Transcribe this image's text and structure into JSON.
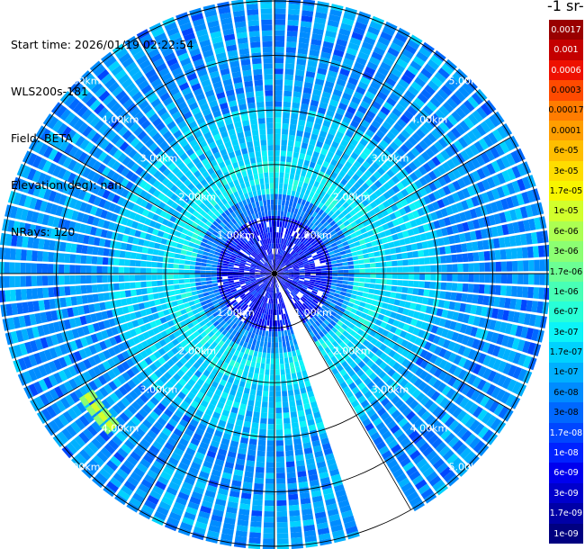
{
  "header": {
    "start_time": "Start time: 2026/01/19 02:22:54",
    "instrument": "WLS200s-181",
    "field": "Field: BETA",
    "elevation": "Elevation(deg): nan",
    "nrays": "NRays: 120"
  },
  "colorbar": {
    "title_fragment": "-1 sr-",
    "labels": [
      "0.0017",
      "0.001",
      "0.0006",
      "0.0003",
      "0.00017",
      "0.0001",
      "6e-05",
      "3e-05",
      "1.7e-05",
      "1e-05",
      "6e-06",
      "3e-06",
      "1.7e-06",
      "1e-06",
      "6e-07",
      "3e-07",
      "1.7e-07",
      "1e-07",
      "6e-08",
      "3e-08",
      "1.7e-08",
      "1e-08",
      "6e-09",
      "3e-09",
      "1.7e-09",
      "1e-09"
    ],
    "colors": [
      "#990000",
      "#c40000",
      "#ee1000",
      "#ff4a00",
      "#ff7c00",
      "#ff9e00",
      "#ffbe00",
      "#ffdd00",
      "#f8f500",
      "#d2ff2c",
      "#acff52",
      "#8cff72",
      "#6cff94",
      "#48ffb6",
      "#28ffd8",
      "#0cf4f8",
      "#00d2ff",
      "#00b0ff",
      "#008cff",
      "#0068ff",
      "#0046ff",
      "#0022ff",
      "#0000ee",
      "#0000cc",
      "#0000a6",
      "#000080"
    ]
  },
  "chart_data": {
    "type": "heatmap",
    "subtype": "polar-ppi",
    "field": "BETA",
    "nrays": 120,
    "range_unit": "km",
    "range_max": 5.0,
    "range_rings": [
      1.0,
      2.0,
      3.0,
      4.0,
      5.0
    ],
    "ring_labels": [
      "1.00km",
      "2.00km",
      "3.00km",
      "4.00km",
      "5.00km"
    ],
    "gap_azimuth_deg": [
      150,
      160
    ],
    "bands": [
      {
        "range": [
          0.0,
          1.0
        ],
        "dominant": "blue"
      },
      {
        "range": [
          1.0,
          2.0
        ],
        "dominant": "cyan"
      },
      {
        "range": [
          2.0,
          3.0
        ],
        "dominant": "light-blue"
      },
      {
        "range": [
          3.0,
          5.0
        ],
        "dominant": "blue"
      }
    ]
  }
}
